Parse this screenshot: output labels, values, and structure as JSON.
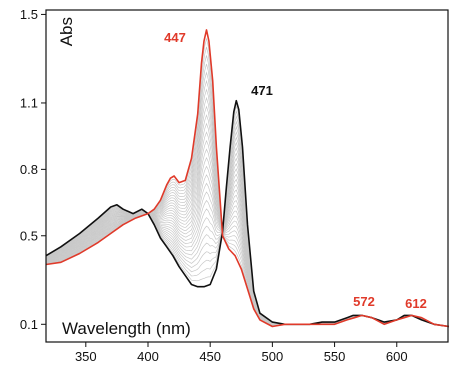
{
  "chart_data": {
    "type": "line",
    "xlabel": "Wavelength (nm)",
    "ylabel": "Abs",
    "xlim": [
      318,
      642
    ],
    "ylim": [
      0.02,
      1.52
    ],
    "x_ticks": [
      350,
      400,
      450,
      500,
      550,
      600
    ],
    "x_tick_labels": [
      "350",
      "400",
      "450",
      "500",
      "550",
      "600"
    ],
    "y_ticks": [
      0.1,
      0.5,
      0.8,
      1.1,
      1.5
    ],
    "y_tick_labels": [
      "0.1",
      "0.5",
      "0.8",
      "1.1",
      "1.5"
    ],
    "grid": false,
    "intermediate_color": "#c8c8c8",
    "series": [
      {
        "color": "#111111",
        "x": [
          318,
          330,
          345,
          360,
          370,
          375,
          380,
          388,
          395,
          400,
          405,
          410,
          415,
          420,
          425,
          430,
          435,
          440,
          445,
          450,
          455,
          460,
          463,
          466,
          469,
          471,
          473,
          476,
          480,
          485,
          490,
          500,
          510,
          520,
          530,
          540,
          550,
          560,
          565,
          572,
          580,
          590,
          600,
          606,
          612,
          620,
          630,
          642
        ],
        "y": [
          0.41,
          0.45,
          0.51,
          0.58,
          0.63,
          0.64,
          0.62,
          0.6,
          0.62,
          0.6,
          0.55,
          0.49,
          0.45,
          0.41,
          0.36,
          0.32,
          0.28,
          0.27,
          0.27,
          0.28,
          0.35,
          0.52,
          0.72,
          0.9,
          1.06,
          1.11,
          1.07,
          0.9,
          0.55,
          0.25,
          0.15,
          0.11,
          0.1,
          0.1,
          0.1,
          0.11,
          0.11,
          0.13,
          0.14,
          0.14,
          0.13,
          0.11,
          0.12,
          0.14,
          0.14,
          0.12,
          0.1,
          0.09
        ]
      },
      {
        "color": "#e03a2a",
        "x": [
          318,
          330,
          345,
          360,
          370,
          380,
          390,
          400,
          405,
          410,
          415,
          418,
          421,
          425,
          430,
          435,
          440,
          443,
          445,
          447,
          449,
          452,
          455,
          460,
          465,
          470,
          475,
          480,
          485,
          490,
          500,
          510,
          520,
          530,
          540,
          550,
          560,
          566,
          572,
          580,
          590,
          600,
          606,
          612,
          620,
          630,
          642
        ],
        "y": [
          0.37,
          0.38,
          0.42,
          0.47,
          0.51,
          0.55,
          0.58,
          0.6,
          0.62,
          0.66,
          0.73,
          0.76,
          0.77,
          0.74,
          0.75,
          0.85,
          1.05,
          1.28,
          1.38,
          1.43,
          1.38,
          1.2,
          0.9,
          0.5,
          0.44,
          0.41,
          0.35,
          0.26,
          0.17,
          0.12,
          0.09,
          0.1,
          0.1,
          0.1,
          0.1,
          0.1,
          0.12,
          0.13,
          0.14,
          0.13,
          0.1,
          0.12,
          0.13,
          0.14,
          0.13,
          0.1,
          0.09
        ]
      }
    ],
    "annotations": [
      {
        "text": "447",
        "color": "#e03a2a"
      },
      {
        "text": "471",
        "color": "#111111"
      },
      {
        "text": "572",
        "color": "#e03a2a"
      },
      {
        "text": "612",
        "color": "#e03a2a"
      }
    ]
  }
}
